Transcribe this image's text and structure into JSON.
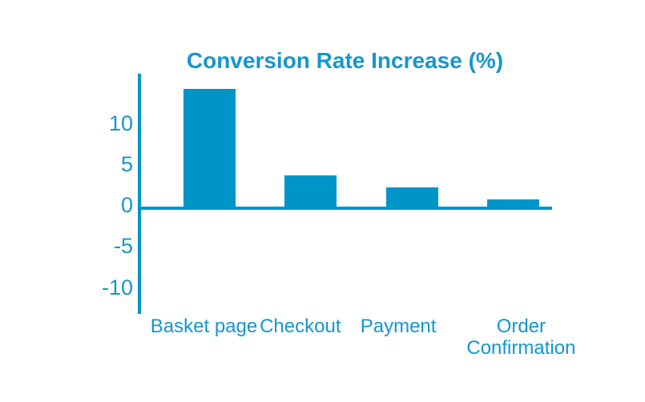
{
  "page": {
    "background": "#ffffff"
  },
  "colors": {
    "bar": "#0095c8",
    "axis": "#0095c8",
    "text": "#1596d0"
  },
  "chart_data": {
    "type": "bar",
    "title": "Conversion Rate Increase (%)",
    "categories": [
      "Basket page",
      "Checkout",
      "Payment",
      "Order Confirmation"
    ],
    "values": [
      14.3,
      3.8,
      2.3,
      0.9
    ],
    "yticks": [
      10,
      5,
      0,
      -5,
      -10
    ],
    "ylim": [
      -13,
      16.2
    ],
    "xlabel": "",
    "ylabel": "",
    "grid": false,
    "legend": "none",
    "bar_color": "#0095c8",
    "title_color": "#1596d0",
    "axis_color": "#0095c8",
    "tick_label_color": "#1596d0",
    "category_label_color": "#1596d0"
  }
}
